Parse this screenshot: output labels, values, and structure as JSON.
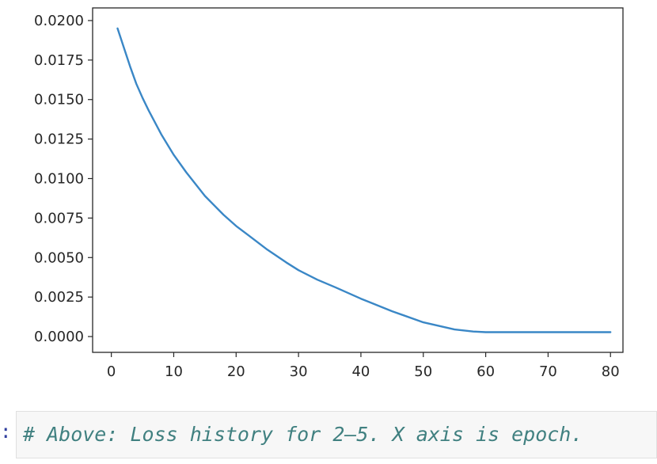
{
  "chart_data": {
    "type": "line",
    "title": "",
    "xlabel": "",
    "ylabel": "",
    "xlim": [
      -3,
      82
    ],
    "ylim": [
      -0.001,
      0.0208
    ],
    "xticks": [
      0,
      10,
      20,
      30,
      40,
      50,
      60,
      70,
      80
    ],
    "xtick_labels": [
      "0",
      "10",
      "20",
      "30",
      "40",
      "50",
      "60",
      "70",
      "80"
    ],
    "yticks": [
      0,
      0.0025,
      0.005,
      0.0075,
      0.01,
      0.0125,
      0.015,
      0.0175,
      0.02
    ],
    "ytick_labels": [
      "0.0000",
      "0.0025",
      "0.0050",
      "0.0075",
      "0.0100",
      "0.0125",
      "0.0150",
      "0.0175",
      "0.0200"
    ],
    "grid": false,
    "series": [
      {
        "color": "#3a87c6",
        "x": [
          1,
          2,
          3,
          4,
          5,
          6,
          8,
          10,
          12,
          15,
          18,
          20,
          22,
          25,
          28,
          30,
          33,
          36,
          40,
          45,
          50,
          55,
          58,
          60,
          62,
          65,
          70,
          75,
          80
        ],
        "y": [
          0.0195,
          0.0183,
          0.0171,
          0.016,
          0.0151,
          0.0143,
          0.0128,
          0.0115,
          0.0104,
          0.0089,
          0.0077,
          0.007,
          0.0064,
          0.0055,
          0.0047,
          0.0042,
          0.0036,
          0.0031,
          0.0024,
          0.0016,
          0.0009,
          0.00045,
          0.00032,
          0.00028,
          0.00028,
          0.00028,
          0.00028,
          0.00028,
          0.00028
        ]
      }
    ]
  },
  "cell": {
    "prompt": ":",
    "code": "# Above: Loss history for 2–5. X axis is epoch."
  }
}
